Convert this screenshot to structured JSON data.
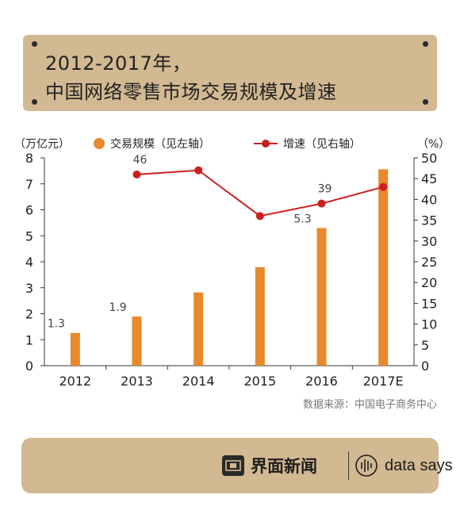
{
  "title": {
    "line1": "2012-2017年，",
    "line2": "中国网络零售市场交易规模及增速"
  },
  "chart_data": {
    "type": "bar",
    "categories": [
      "2012",
      "2013",
      "2014",
      "2015",
      "2016",
      "2017E"
    ],
    "series": [
      {
        "name": "交易规模（见左轴）",
        "type": "bar",
        "axis": "left",
        "values": [
          1.26,
          1.89,
          2.82,
          3.79,
          5.3,
          7.56
        ],
        "data_labels": [
          "1.3",
          "1.9",
          "",
          "",
          "5.3",
          ""
        ],
        "color": "#e8892b"
      },
      {
        "name": "增速（见右轴）",
        "type": "line",
        "axis": "right",
        "values": [
          null,
          46,
          47,
          36,
          39,
          43
        ],
        "data_labels": [
          "",
          "46",
          "",
          "",
          "39",
          ""
        ],
        "color": "#cc1f1f"
      }
    ],
    "left_axis": {
      "unit": "（万亿元）",
      "ylim": [
        0,
        8
      ],
      "ticks": [
        "0",
        "1",
        "2",
        "3",
        "4",
        "5",
        "6",
        "7",
        "8"
      ]
    },
    "right_axis": {
      "unit": "（%）",
      "ylim": [
        0,
        50
      ],
      "ticks": [
        "0",
        "5",
        "10",
        "15",
        "20",
        "25",
        "30",
        "35",
        "40",
        "45",
        "50"
      ]
    },
    "grid": false,
    "legend": "top"
  },
  "source": "数据来源：中国电子商务中心",
  "footer": {
    "brand_cn": "界面新闻",
    "brand_en": "data says"
  },
  "colors": {
    "panel": "#d2b992",
    "bar": "#e8892b",
    "line": "#cc1f1f"
  }
}
